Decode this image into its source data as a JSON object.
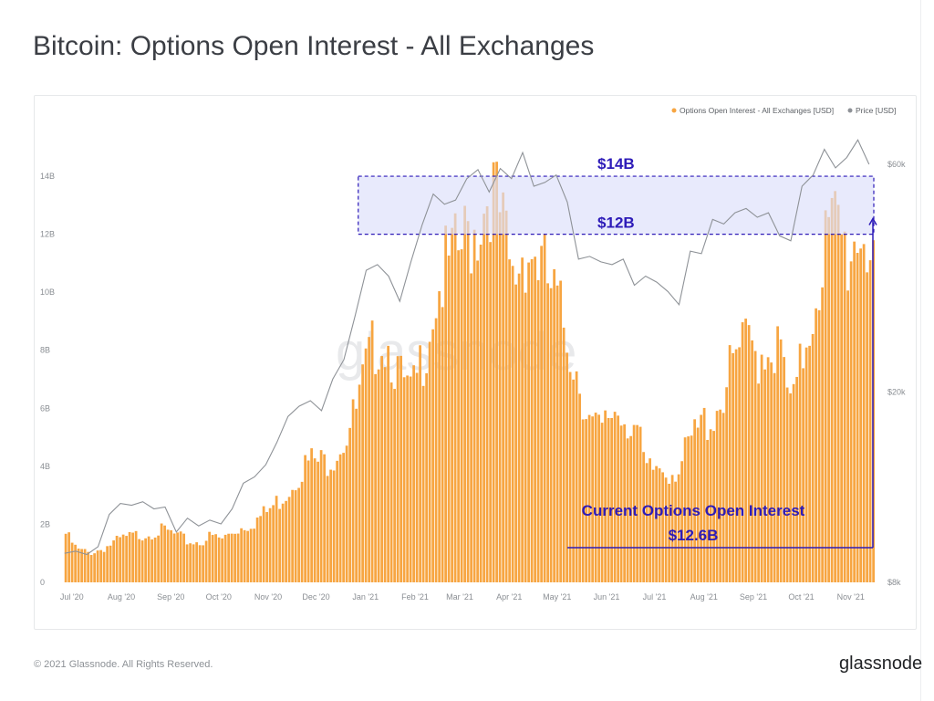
{
  "page": {
    "title": "Bitcoin: Options Open Interest - All Exchanges",
    "footer": "© 2021 Glassnode. All Rights Reserved.",
    "logo": "glassnode",
    "watermark": "glassnode"
  },
  "chart_data": {
    "type": "bar",
    "title": "Bitcoin: Options Open Interest - All Exchanges",
    "xlabel": "",
    "ylabel": "",
    "x_tick_labels": [
      "Jul '20",
      "Aug '20",
      "Sep '20",
      "Oct '20",
      "Nov '20",
      "Dec '20",
      "Jan '21",
      "Feb '21",
      "Mar '21",
      "Apr '21",
      "May '21",
      "Jun '21",
      "Jul '21",
      "Aug '21",
      "Sep '21",
      "Oct '21",
      "Nov '21"
    ],
    "y_left": {
      "ticks": [
        "0",
        "2B",
        "4B",
        "6B",
        "8B",
        "10B",
        "12B",
        "14B"
      ],
      "ylim": [
        0,
        15
      ],
      "unit": "B USD"
    },
    "y_right": {
      "ticks": [
        "$8k",
        "$20k",
        "$60k"
      ],
      "scale": "log",
      "tick_values": [
        8000,
        20000,
        60000
      ],
      "ylim": [
        8000,
        70000
      ]
    },
    "legend_position": "top-right",
    "series": [
      {
        "name": "Options Open Interest - All Exchanges [USD]",
        "kind": "bar",
        "color": "#f7a541",
        "axis": "left",
        "unit": "B USD",
        "points": [
          [
            "2020-07-01",
            1.8
          ],
          [
            "2020-07-08",
            1.2
          ],
          [
            "2020-07-15",
            1.1
          ],
          [
            "2020-07-22",
            1.2
          ],
          [
            "2020-07-29",
            1.4
          ],
          [
            "2020-08-05",
            1.6
          ],
          [
            "2020-08-12",
            1.7
          ],
          [
            "2020-08-19",
            1.8
          ],
          [
            "2020-08-26",
            1.9
          ],
          [
            "2020-09-02",
            1.9
          ],
          [
            "2020-09-09",
            1.7
          ],
          [
            "2020-09-16",
            1.5
          ],
          [
            "2020-09-23",
            1.5
          ],
          [
            "2020-09-30",
            1.7
          ],
          [
            "2020-10-07",
            1.6
          ],
          [
            "2020-10-14",
            1.9
          ],
          [
            "2020-10-21",
            2.1
          ],
          [
            "2020-10-28",
            2.3
          ],
          [
            "2020-11-04",
            2.6
          ],
          [
            "2020-11-11",
            3.0
          ],
          [
            "2020-11-18",
            3.5
          ],
          [
            "2020-11-25",
            4.2
          ],
          [
            "2020-12-02",
            4.5
          ],
          [
            "2020-12-09",
            4.4
          ],
          [
            "2020-12-16",
            4.8
          ],
          [
            "2020-12-23",
            5.4
          ],
          [
            "2020-12-30",
            6.3
          ],
          [
            "2021-01-06",
            8.0
          ],
          [
            "2021-01-13",
            9.2
          ],
          [
            "2021-01-20",
            8.8
          ],
          [
            "2021-01-27",
            7.4
          ],
          [
            "2021-02-03",
            6.8
          ],
          [
            "2021-02-10",
            8.5
          ],
          [
            "2021-02-17",
            10.5
          ],
          [
            "2021-02-24",
            11.5
          ],
          [
            "2021-03-03",
            12.0
          ],
          [
            "2021-03-10",
            12.8
          ],
          [
            "2021-03-17",
            13.5
          ],
          [
            "2021-03-24",
            14.8
          ],
          [
            "2021-03-31",
            13.2
          ],
          [
            "2021-04-07",
            11.0
          ],
          [
            "2021-04-14",
            12.5
          ],
          [
            "2021-04-21",
            12.2
          ],
          [
            "2021-04-28",
            11.2
          ],
          [
            "2021-05-05",
            10.2
          ],
          [
            "2021-05-12",
            9.0
          ],
          [
            "2021-05-19",
            7.5
          ],
          [
            "2021-05-26",
            5.8
          ],
          [
            "2021-06-02",
            5.5
          ],
          [
            "2021-06-09",
            6.5
          ],
          [
            "2021-06-16",
            6.2
          ],
          [
            "2021-06-23",
            5.8
          ],
          [
            "2021-06-30",
            4.0
          ],
          [
            "2021-07-07",
            4.3
          ],
          [
            "2021-07-14",
            4.2
          ],
          [
            "2021-07-21",
            4.3
          ],
          [
            "2021-07-28",
            5.2
          ],
          [
            "2021-08-04",
            5.9
          ],
          [
            "2021-08-11",
            6.2
          ],
          [
            "2021-08-18",
            7.2
          ],
          [
            "2021-08-25",
            8.3
          ],
          [
            "2021-09-01",
            8.8
          ],
          [
            "2021-09-08",
            8.5
          ],
          [
            "2021-09-15",
            8.9
          ],
          [
            "2021-09-22",
            8.4
          ],
          [
            "2021-09-29",
            6.2
          ],
          [
            "2021-10-06",
            8.5
          ],
          [
            "2021-10-13",
            10.5
          ],
          [
            "2021-10-20",
            12.6
          ],
          [
            "2021-10-27",
            13.2
          ],
          [
            "2021-11-03",
            12.0
          ],
          [
            "2021-11-10",
            13.3
          ],
          [
            "2021-11-17",
            12.6
          ]
        ]
      },
      {
        "name": "Price [USD]",
        "kind": "line",
        "color": "#8e9297",
        "axis": "right",
        "points": [
          [
            "2020-07-01",
            9200
          ],
          [
            "2020-07-08",
            9300
          ],
          [
            "2020-07-15",
            9150
          ],
          [
            "2020-07-22",
            9500
          ],
          [
            "2020-07-29",
            11100
          ],
          [
            "2020-08-05",
            11700
          ],
          [
            "2020-08-12",
            11600
          ],
          [
            "2020-08-19",
            11800
          ],
          [
            "2020-08-26",
            11400
          ],
          [
            "2020-09-02",
            11500
          ],
          [
            "2020-09-09",
            10200
          ],
          [
            "2020-09-16",
            10900
          ],
          [
            "2020-09-23",
            10500
          ],
          [
            "2020-09-30",
            10800
          ],
          [
            "2020-10-07",
            10600
          ],
          [
            "2020-10-14",
            11400
          ],
          [
            "2020-10-21",
            12900
          ],
          [
            "2020-10-28",
            13300
          ],
          [
            "2020-11-04",
            14100
          ],
          [
            "2020-11-11",
            15700
          ],
          [
            "2020-11-18",
            17800
          ],
          [
            "2020-11-25",
            18700
          ],
          [
            "2020-12-02",
            19200
          ],
          [
            "2020-12-09",
            18300
          ],
          [
            "2020-12-16",
            21300
          ],
          [
            "2020-12-23",
            23400
          ],
          [
            "2020-12-30",
            28900
          ],
          [
            "2021-01-06",
            36000
          ],
          [
            "2021-01-13",
            37000
          ],
          [
            "2021-01-20",
            35000
          ],
          [
            "2021-01-27",
            31000
          ],
          [
            "2021-02-03",
            37500
          ],
          [
            "2021-02-10",
            44800
          ],
          [
            "2021-02-17",
            52000
          ],
          [
            "2021-02-24",
            49500
          ],
          [
            "2021-03-03",
            50500
          ],
          [
            "2021-03-10",
            56000
          ],
          [
            "2021-03-17",
            58500
          ],
          [
            "2021-03-24",
            52500
          ],
          [
            "2021-03-31",
            58800
          ],
          [
            "2021-04-07",
            56000
          ],
          [
            "2021-04-14",
            63500
          ],
          [
            "2021-04-21",
            54000
          ],
          [
            "2021-04-28",
            55000
          ],
          [
            "2021-05-05",
            57000
          ],
          [
            "2021-05-12",
            50000
          ],
          [
            "2021-05-19",
            38000
          ],
          [
            "2021-05-26",
            38500
          ],
          [
            "2021-06-02",
            37500
          ],
          [
            "2021-06-09",
            37000
          ],
          [
            "2021-06-16",
            38000
          ],
          [
            "2021-06-23",
            33500
          ],
          [
            "2021-06-30",
            35000
          ],
          [
            "2021-07-07",
            34000
          ],
          [
            "2021-07-14",
            32500
          ],
          [
            "2021-07-21",
            30500
          ],
          [
            "2021-07-28",
            39500
          ],
          [
            "2021-08-04",
            39000
          ],
          [
            "2021-08-11",
            46000
          ],
          [
            "2021-08-18",
            45000
          ],
          [
            "2021-08-25",
            47500
          ],
          [
            "2021-09-01",
            48500
          ],
          [
            "2021-09-08",
            46500
          ],
          [
            "2021-09-15",
            47500
          ],
          [
            "2021-09-22",
            42500
          ],
          [
            "2021-09-29",
            41500
          ],
          [
            "2021-10-06",
            54000
          ],
          [
            "2021-10-13",
            57000
          ],
          [
            "2021-10-20",
            64500
          ],
          [
            "2021-10-27",
            59000
          ],
          [
            "2021-11-03",
            62000
          ],
          [
            "2021-11-10",
            67500
          ],
          [
            "2021-11-17",
            60000
          ]
        ]
      }
    ],
    "annotations": {
      "band": {
        "from": 12,
        "to": 14,
        "start_date": "2021-01-01",
        "end_date": "2021-11-20",
        "fill": "#dcdffb",
        "stroke": "#2d1bb8"
      },
      "band_top_label": "$14B",
      "band_bottom_label": "$12B",
      "current_label": "Current Options Open Interest",
      "current_value_label": "$12.6B",
      "current_start_date": "2021-05-12",
      "current_date": "2021-11-20",
      "current_value": 12.6
    }
  }
}
